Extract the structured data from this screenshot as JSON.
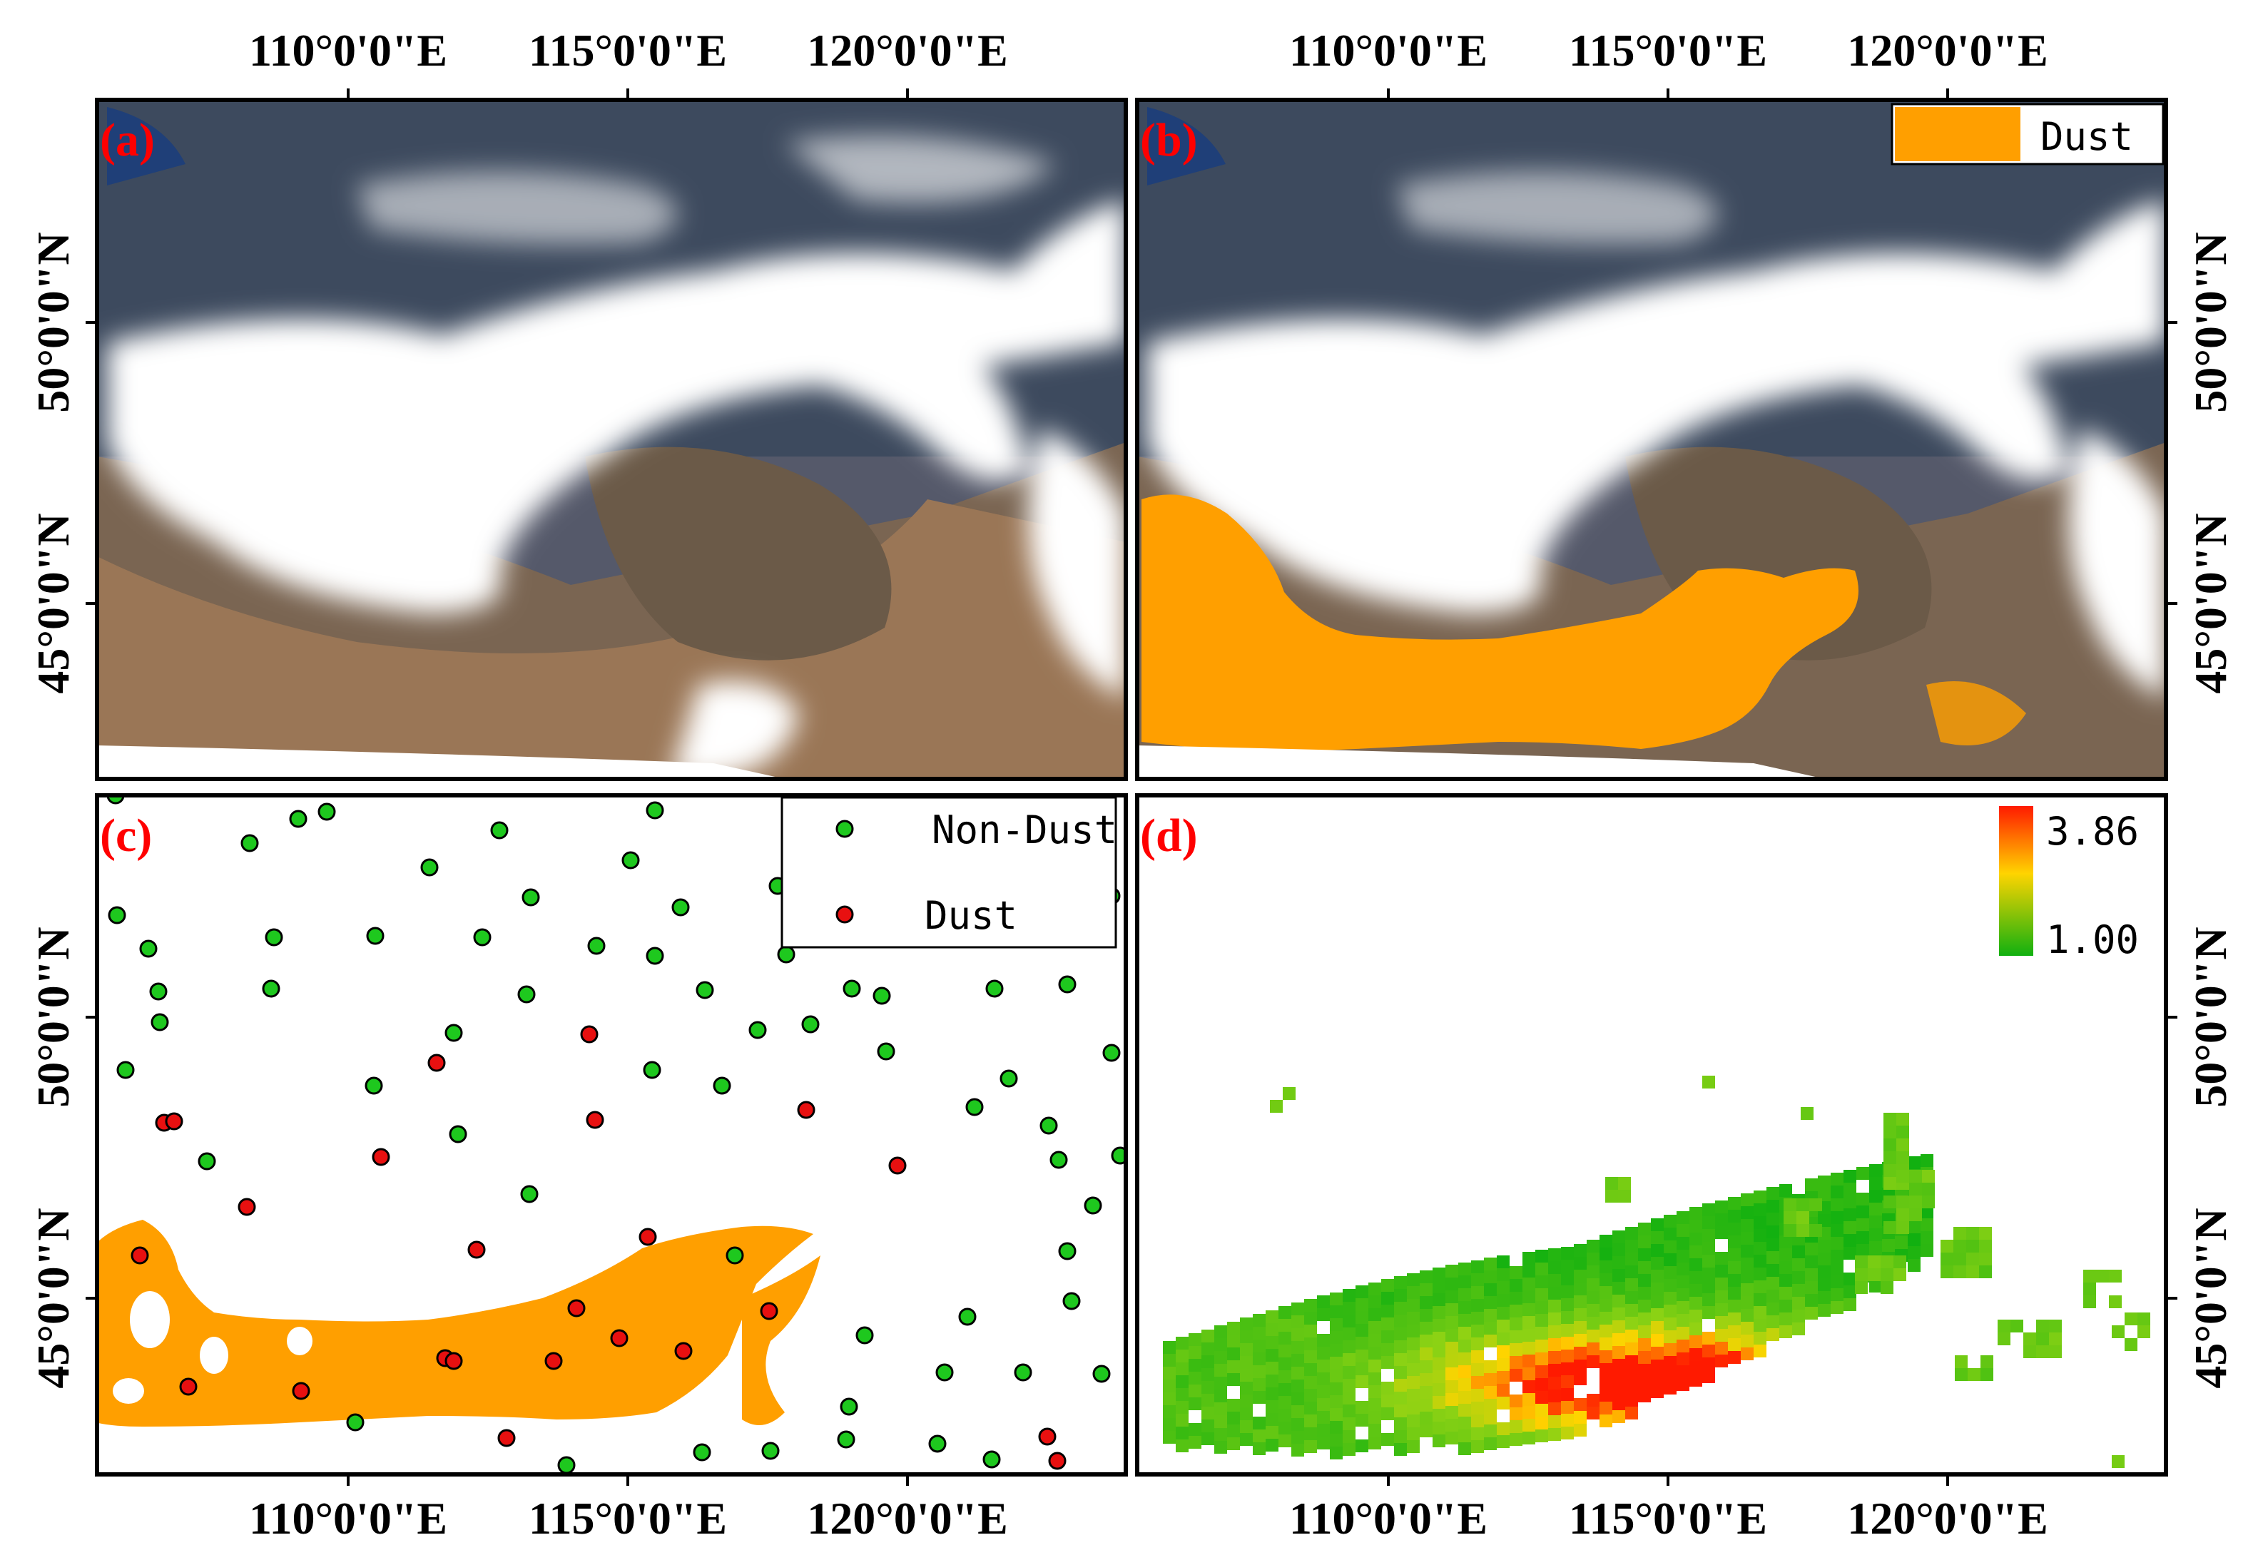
{
  "figure": {
    "top_lon_ticks": [
      "110°0'0\"E",
      "115°0'0\"E",
      "120°0'0\"E"
    ],
    "bottom_lon_ticks": [
      "110°0'0\"E",
      "115°0'0\"E",
      "120°0'0\"E",
      "110°0'0\"E",
      "115°0'0\"E",
      "120°0'0\"E"
    ],
    "lat_ticks": [
      "50°0'0\"N",
      "45°0'0\"N"
    ],
    "panels": [
      {
        "id": "a",
        "label": "(a)"
      },
      {
        "id": "b",
        "label": "(b)"
      },
      {
        "id": "c",
        "label": "(c)"
      },
      {
        "id": "d",
        "label": "(d)"
      }
    ],
    "legend_b": {
      "label": "Dust",
      "color": "#ff9f00"
    },
    "legend_c": {
      "non_dust_label": "Non-Dust",
      "dust_label": "Dust",
      "non_dust_color": "#1ec81e",
      "dust_color": "#e81010"
    },
    "legend_d": {
      "max": "3.86",
      "min": "1.00",
      "high_color": "#ff1a00",
      "mid_color": "#ffd400",
      "low_color": "#10b010"
    }
  }
}
